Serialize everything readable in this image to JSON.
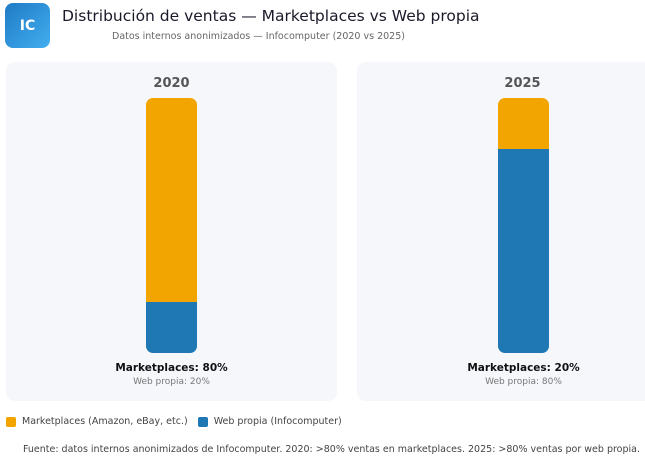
{
  "header": {
    "logo": "IC",
    "title": "Distribución de ventas — Marketplaces vs Web propia",
    "subtitle": "Datos internos anonimizados — Infocomputer (2020 vs 2025)"
  },
  "chart_data": {
    "type": "bar",
    "stacked": true,
    "normalized": true,
    "categories": [
      "2020",
      "2025"
    ],
    "series": [
      {
        "name": "Marketplaces (Amazon, eBay, etc.)",
        "color": "#f2a500",
        "values": [
          80,
          20
        ]
      },
      {
        "name": "Web propia (Infocomputer)",
        "color": "#1f77b4",
        "values": [
          20,
          80
        ]
      }
    ],
    "labels": [
      {
        "main": "Marketplaces: 80%",
        "sub": "Web propia: 20%"
      },
      {
        "main": "Marketplaces: 20%",
        "sub": "Web propia: 80%"
      }
    ],
    "legend_position": "bottom-left"
  },
  "footer": "Fuente: datos internos anonimizados de Infocomputer. 2020: >80% ventas en marketplaces. 2025: >80% ventas por web propia."
}
